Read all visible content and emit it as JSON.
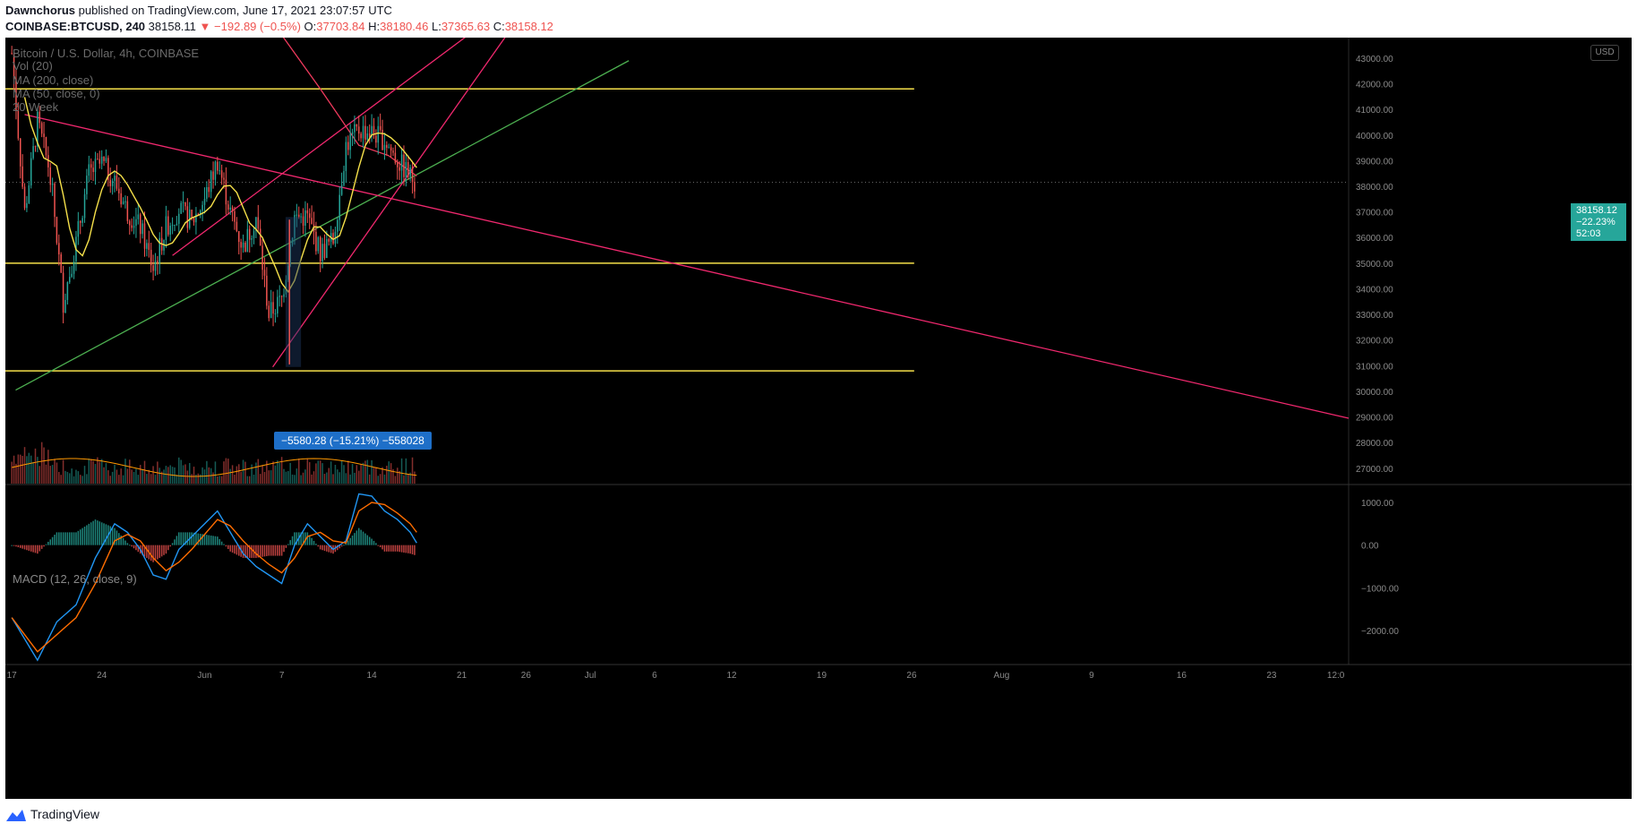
{
  "header": {
    "author": "Dawnchorus",
    "published": "published on TradingView.com, June 17, 2021 23:07:57 UTC",
    "symbol": "COINBASE:BTCUSD, 240",
    "last": "38158.11",
    "arrow": "▼",
    "change": "−192.89 (−0.5%)",
    "o_label": "O:",
    "o_value": "37703.84",
    "h_label": "H:",
    "h_value": "38180.46",
    "l_label": "L:",
    "l_value": "37365.63",
    "c_label": "C:",
    "c_value": "38158.12"
  },
  "overlay": {
    "title": "Bitcoin / U.S. Dollar, 4h, COINBASE",
    "vol": "Vol (20)",
    "ma1": "MA (200, close)",
    "ma2": "MA (50, close, 0)",
    "ma3": "20 Week",
    "usd": "USD",
    "macd_label": "MACD (12, 26, close, 9)"
  },
  "price_tag": {
    "price": "38158.12",
    "pct": "−22.23%",
    "timer": "52:03"
  },
  "measure_label": "−5580.28 (−15.21%) −558028",
  "footer": {
    "brand": "TradingView"
  },
  "colors": {
    "background": "#000000",
    "up": "#26a69a",
    "down": "#ef5350",
    "yellow": "#f5e04a",
    "pink": "#f0286e",
    "green_line": "#4caf50",
    "macd": "#2196f3",
    "signal": "#ff6d00"
  },
  "chart_data": [
    {
      "type": "line",
      "title": "Bitcoin / U.S. Dollar, 4h, COINBASE",
      "y_axis_ticks": [
        27000,
        28000,
        29000,
        30000,
        31000,
        32000,
        33000,
        34000,
        35000,
        36000,
        37000,
        38000,
        39000,
        40000,
        41000,
        42000,
        43000
      ],
      "y_tick_labels": [
        "27000.00",
        "28000.00",
        "29000.00",
        "30000.00",
        "31000.00",
        "32000.00",
        "33000.00",
        "34000.00",
        "35000.00",
        "36000.00",
        "37000.00",
        "38000.00",
        "39000.00",
        "40000.00",
        "41000.00",
        "42000.00",
        "43000.00"
      ],
      "ylim": [
        26400,
        43800
      ],
      "x_tick_labels": [
        "17",
        "24",
        "Jun",
        "7",
        "14",
        "21",
        "26",
        "Jul",
        "6",
        "12",
        "19",
        "26",
        "Aug",
        "9",
        "16",
        "23",
        "12:0"
      ],
      "x_tick_days": [
        0,
        7,
        15,
        21,
        28,
        35,
        40,
        45,
        50,
        56,
        63,
        70,
        77,
        84,
        91,
        98,
        103
      ],
      "xlim_days": [
        -0.5,
        104
      ],
      "close_series": {
        "name": "BTCUSD 4h",
        "days": [
          0,
          1,
          2,
          3,
          4,
          5,
          6,
          7,
          8,
          9,
          10,
          11,
          12,
          13,
          14,
          15,
          16,
          17,
          18,
          19,
          20,
          21,
          22,
          23,
          24,
          25,
          26,
          27,
          28,
          29,
          30,
          31,
          31.5
        ],
        "values": [
          43200,
          37000,
          40500,
          38500,
          33500,
          35800,
          38500,
          38900,
          38200,
          37000,
          36400,
          34800,
          36400,
          37100,
          36600,
          37500,
          39000,
          37000,
          35600,
          36800,
          33000,
          33600,
          36800,
          36800,
          35400,
          35900,
          39600,
          40200,
          40100,
          39800,
          39000,
          38400,
          38158
        ]
      },
      "horizontal_levels": [
        41800,
        35000,
        30800
      ],
      "annotation": "−5580.28 (−15.21%) −558028",
      "last_price": 38158.12
    },
    {
      "type": "line",
      "title": "MACD (12, 26, close, 9)",
      "y_axis_ticks": [
        -2000,
        -1000,
        0,
        1000
      ],
      "y_tick_labels": [
        "−2000.00",
        "−1000.00",
        "0.00",
        "1000.00"
      ],
      "ylim": [
        -2800,
        1400
      ],
      "series": [
        {
          "name": "MACD",
          "days": [
            0,
            2,
            3.5,
            5,
            6.5,
            8,
            9,
            10,
            11,
            12,
            13,
            14,
            15,
            16,
            17,
            18,
            19,
            20,
            21,
            22,
            23,
            24,
            25,
            26,
            27,
            28,
            29,
            30,
            31,
            31.5
          ],
          "values": [
            -1700,
            -2700,
            -1800,
            -1400,
            -300,
            500,
            300,
            -100,
            -700,
            -800,
            -100,
            200,
            500,
            800,
            300,
            -200,
            -500,
            -700,
            -900,
            0,
            500,
            200,
            -100,
            100,
            1200,
            1150,
            800,
            600,
            300,
            50
          ]
        },
        {
          "name": "Signal",
          "days": [
            0,
            2,
            3.5,
            5,
            6.5,
            8,
            9,
            10,
            11,
            12,
            13,
            14,
            15,
            16,
            17,
            18,
            19,
            20,
            21,
            22,
            23,
            24,
            25,
            26,
            27,
            28,
            29,
            30,
            31,
            31.5
          ],
          "values": [
            -1700,
            -2500,
            -2100,
            -1700,
            -900,
            100,
            250,
            100,
            -300,
            -600,
            -400,
            -100,
            250,
            600,
            450,
            100,
            -200,
            -450,
            -650,
            -300,
            200,
            300,
            100,
            50,
            800,
            1000,
            950,
            750,
            500,
            300
          ]
        }
      ]
    }
  ]
}
